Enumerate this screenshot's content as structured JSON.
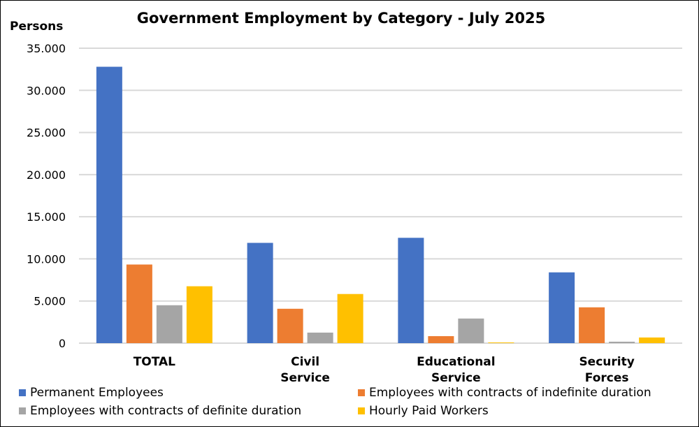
{
  "chart_data": {
    "type": "bar",
    "title": "Government Employment by Category - July 2025",
    "ylabel": "Persons",
    "xlabel": "",
    "ylim": [
      0,
      35000
    ],
    "yticks": [
      "0",
      "5.000",
      "10.000",
      "15.000",
      "20.000",
      "25.000",
      "30.000",
      "35.000"
    ],
    "grid": true,
    "legend_position": "bottom",
    "categories": [
      [
        "TOTAL"
      ],
      [
        "Civil",
        "Service"
      ],
      [
        "Educational",
        "Service"
      ],
      [
        "Security",
        "Forces"
      ]
    ],
    "series": [
      {
        "name": "Permanent Employees",
        "color": "#4472C4",
        "values": [
          32800,
          11900,
          12500,
          8400
        ]
      },
      {
        "name": "Employees with contracts of indefinite duration",
        "color": "#ED7D31",
        "values": [
          9330,
          4080,
          830,
          4250
        ]
      },
      {
        "name": "Employees with contracts of definite duration",
        "color": "#A5A5A5",
        "values": [
          4500,
          1250,
          2920,
          170
        ]
      },
      {
        "name": "Hourly Paid Workers",
        "color": "#FFC000",
        "values": [
          6750,
          5830,
          80,
          670
        ]
      }
    ]
  }
}
